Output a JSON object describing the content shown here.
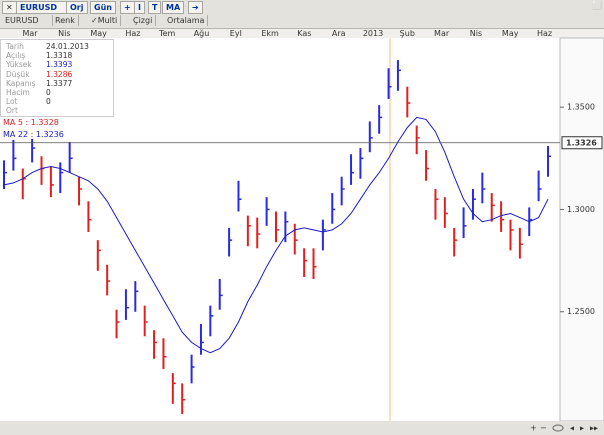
{
  "toolbar": {
    "symbol": "EURUSD",
    "buttons": [
      "Orj",
      "Gün",
      "+",
      "I",
      "T",
      "MA",
      "➔"
    ]
  },
  "subbar": {
    "symbol": "EURUSD",
    "items": [
      "Renk",
      "✓Multi",
      "Çizgi",
      "Ortalama"
    ]
  },
  "info": {
    "rows": [
      [
        "Tarih",
        "24.01.2013"
      ],
      [
        "Açılış",
        "1.3318"
      ],
      [
        "Yüksek",
        "1.3393"
      ],
      [
        "Düşük",
        "1.3286"
      ],
      [
        "Kapanış",
        "1.3377"
      ],
      [
        "Hacim",
        "0"
      ],
      [
        "Lot",
        "0"
      ],
      [
        "Ort"
      ]
    ]
  },
  "ma_labels": [
    "MA 5 : 1.3328",
    "MA 22 : 1.3236"
  ],
  "chart_data": {
    "type": "ohlc",
    "months": [
      "Mar",
      "Nis",
      "May",
      "Haz",
      "Tem",
      "Ağu",
      "Eyl",
      "Ekm",
      "Kas",
      "Ara",
      "2013",
      "Şub",
      "Mar",
      "Nis",
      "May",
      "Haz"
    ],
    "close": [
      1.318,
      1.325,
      1.315,
      1.33,
      1.32,
      1.312,
      1.318,
      1.325,
      1.31,
      1.295,
      1.28,
      1.265,
      1.245,
      1.252,
      1.26,
      1.245,
      1.235,
      1.228,
      1.215,
      1.207,
      1.223,
      1.235,
      1.248,
      1.258,
      1.285,
      1.305,
      1.292,
      1.288,
      1.3,
      1.29,
      1.294,
      1.285,
      1.275,
      1.272,
      1.29,
      1.3,
      1.31,
      1.318,
      1.325,
      1.335,
      1.345,
      1.36,
      1.368,
      1.352,
      1.335,
      1.32,
      1.305,
      1.298,
      1.285,
      1.292,
      1.305,
      1.31,
      1.302,
      1.295,
      1.29,
      1.283,
      1.295,
      1.31,
      1.326
    ],
    "high": [
      1.324,
      1.334,
      1.32,
      1.338,
      1.326,
      1.321,
      1.323,
      1.333,
      1.316,
      1.304,
      1.285,
      1.273,
      1.251,
      1.261,
      1.265,
      1.253,
      1.241,
      1.237,
      1.22,
      1.215,
      1.229,
      1.244,
      1.253,
      1.266,
      1.291,
      1.314,
      1.297,
      1.296,
      1.306,
      1.299,
      1.299,
      1.293,
      1.281,
      1.281,
      1.295,
      1.308,
      1.316,
      1.327,
      1.33,
      1.343,
      1.351,
      1.369,
      1.373,
      1.36,
      1.341,
      1.329,
      1.31,
      1.306,
      1.291,
      1.301,
      1.31,
      1.318,
      1.308,
      1.304,
      1.295,
      1.291,
      1.301,
      1.319,
      1.331
    ],
    "low": [
      1.31,
      1.319,
      1.305,
      1.323,
      1.312,
      1.306,
      1.308,
      1.318,
      1.302,
      1.289,
      1.27,
      1.258,
      1.237,
      1.246,
      1.25,
      1.238,
      1.227,
      1.222,
      1.205,
      1.2,
      1.215,
      1.229,
      1.238,
      1.251,
      1.277,
      1.299,
      1.282,
      1.281,
      1.292,
      1.284,
      1.284,
      1.278,
      1.267,
      1.266,
      1.28,
      1.293,
      1.302,
      1.312,
      1.315,
      1.328,
      1.337,
      1.354,
      1.358,
      1.345,
      1.327,
      1.314,
      1.295,
      1.291,
      1.277,
      1.286,
      1.295,
      1.303,
      1.294,
      1.289,
      1.28,
      1.276,
      1.287,
      1.304,
      1.316
    ],
    "ma22": [
      1.312,
      1.313,
      1.315,
      1.318,
      1.32,
      1.321,
      1.32,
      1.318,
      1.316,
      1.314,
      1.31,
      1.304,
      1.296,
      1.288,
      1.28,
      1.272,
      1.264,
      1.256,
      1.248,
      1.24,
      1.235,
      1.232,
      1.23,
      1.232,
      1.237,
      1.245,
      1.255,
      1.263,
      1.272,
      1.28,
      1.287,
      1.29,
      1.291,
      1.29,
      1.289,
      1.29,
      1.293,
      1.298,
      1.305,
      1.312,
      1.318,
      1.325,
      1.333,
      1.34,
      1.345,
      1.344,
      1.338,
      1.328,
      1.316,
      1.305,
      1.298,
      1.294,
      1.295,
      1.297,
      1.298,
      1.296,
      1.294,
      1.296,
      1.305
    ],
    "ma_color": "#1a1acc",
    "up_color": "#2a2ae0",
    "down_color": "#e02020",
    "ylim": [
      1.1966,
      1.3838
    ],
    "yticks": [
      {
        "value": 1.25,
        "label": "1.2500"
      },
      {
        "value": 1.3,
        "label": "1.3000"
      },
      {
        "value": 1.35,
        "label": "1.3500"
      }
    ],
    "last_price": 1.3326
  }
}
